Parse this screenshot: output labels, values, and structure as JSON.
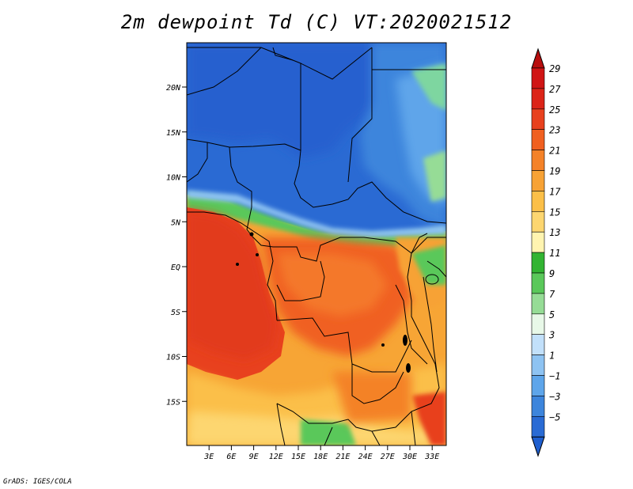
{
  "title": "2m dewpoint Td (C) VT:2020021512",
  "footer": "GrADS: IGES/COLA",
  "map": {
    "lat_labels": [
      {
        "text": "20N",
        "lat": 20
      },
      {
        "text": "15N",
        "lat": 15
      },
      {
        "text": "10N",
        "lat": 10
      },
      {
        "text": "5N",
        "lat": 5
      },
      {
        "text": "EQ",
        "lat": 0
      },
      {
        "text": "5S",
        "lat": -5
      },
      {
        "text": "10S",
        "lat": -10
      },
      {
        "text": "15S",
        "lat": -15
      }
    ],
    "lon_labels": [
      {
        "text": "3E",
        "lon": 3
      },
      {
        "text": "6E",
        "lon": 6
      },
      {
        "text": "9E",
        "lon": 9
      },
      {
        "text": "12E",
        "lon": 12
      },
      {
        "text": "15E",
        "lon": 15
      },
      {
        "text": "18E",
        "lon": 18
      },
      {
        "text": "21E",
        "lon": 21
      },
      {
        "text": "24E",
        "lon": 24
      },
      {
        "text": "27E",
        "lon": 27
      },
      {
        "text": "30E",
        "lon": 30
      },
      {
        "text": "33E",
        "lon": 33
      }
    ]
  },
  "colorbar": {
    "labels": [
      "29",
      "27",
      "25",
      "23",
      "21",
      "19",
      "17",
      "15",
      "13",
      "11",
      "9",
      "7",
      "5",
      "3",
      "1",
      "−1",
      "−3",
      "−5"
    ],
    "colors": [
      "#d01515",
      "#dc2418",
      "#e8411e",
      "#f06020",
      "#f48228",
      "#f7a235",
      "#fbbf48",
      "#fdd670",
      "#fff4b0",
      "#32b432",
      "#5ac85a",
      "#96dc96",
      "#e8f8e8",
      "#c2e0fa",
      "#8ec3f2",
      "#5ea5ea",
      "#3d85dc",
      "#2a6bd4"
    ],
    "top_cap_color": "#b80e0e",
    "bottom_cap_color": "#1f5fcf"
  }
}
